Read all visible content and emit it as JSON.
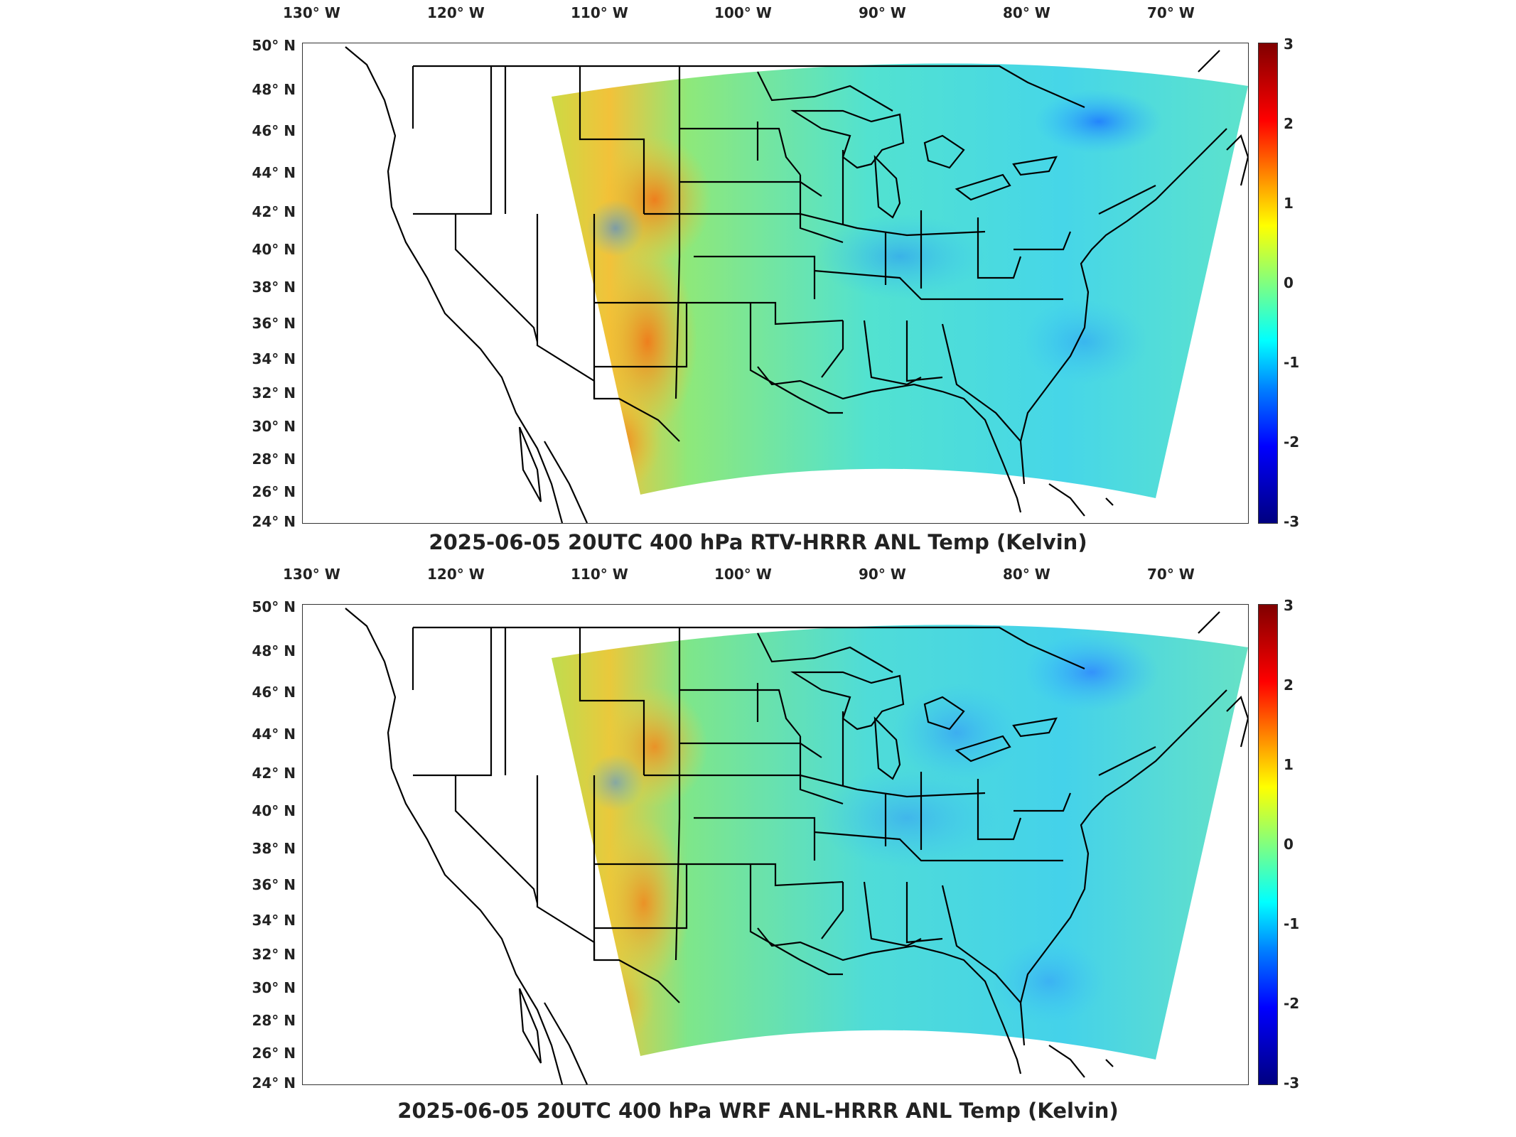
{
  "panels": [
    {
      "title": "2025-06-05 20UTC 400 hPa RTV-HRRR ANL Temp (Kelvin)"
    },
    {
      "title": "2025-06-05 20UTC 400 hPa WRF ANL-HRRR ANL Temp (Kelvin)"
    }
  ],
  "axes": {
    "lon_ticks": [
      "130° W",
      "120° W",
      "110° W",
      "100° W",
      "90° W",
      "80° W",
      "70° W"
    ],
    "lat_ticks": [
      "50° N",
      "48° N",
      "46° N",
      "44° N",
      "42° N",
      "40° N",
      "38° N",
      "36° N",
      "34° N",
      "32° N",
      "30° N",
      "28° N",
      "26° N",
      "24° N"
    ]
  },
  "colorbar": {
    "ticks": [
      "3",
      "2",
      "1",
      "0",
      "-1",
      "-2",
      "-3"
    ],
    "range": [
      -3,
      3
    ],
    "colormap": "jet"
  },
  "colors": {
    "field_base": "#5fe8c8",
    "warm": "#f5a623",
    "cool": "#2ea8ff",
    "outline": "#000000"
  }
}
